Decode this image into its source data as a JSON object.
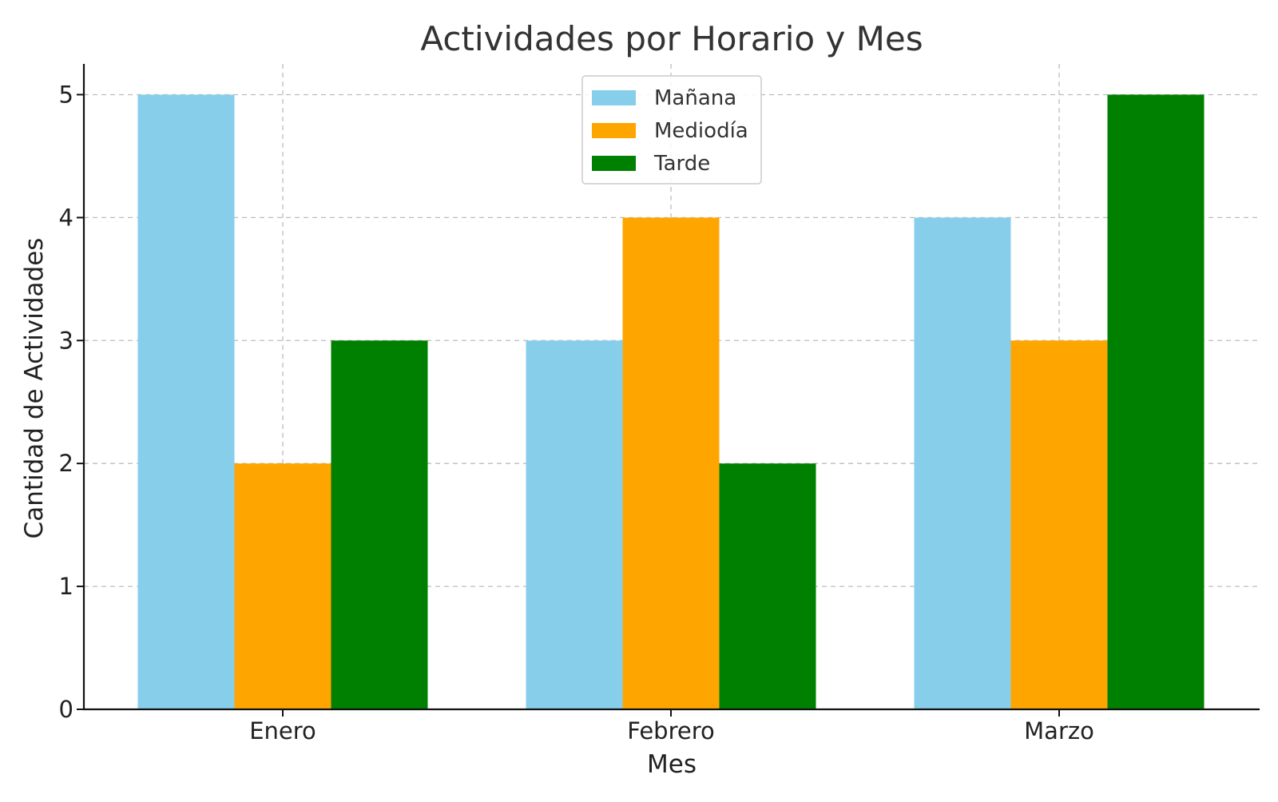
{
  "chart_data": {
    "type": "bar",
    "title": "Actividades por Horario y Mes",
    "xlabel": "Mes",
    "ylabel": "Cantidad de Actividades",
    "categories": [
      "Enero",
      "Febrero",
      "Marzo"
    ],
    "series": [
      {
        "name": "Mañana",
        "color": "#87CEEB",
        "values": [
          5,
          3,
          4
        ]
      },
      {
        "name": "Mediodía",
        "color": "#FFA500",
        "values": [
          2,
          4,
          3
        ]
      },
      {
        "name": "Tarde",
        "color": "#008000",
        "values": [
          3,
          2,
          5
        ]
      }
    ],
    "ylim": [
      0,
      5.25
    ],
    "yticks": [
      0,
      1,
      2,
      3,
      4,
      5
    ],
    "grid": true,
    "legend": "top-center"
  }
}
